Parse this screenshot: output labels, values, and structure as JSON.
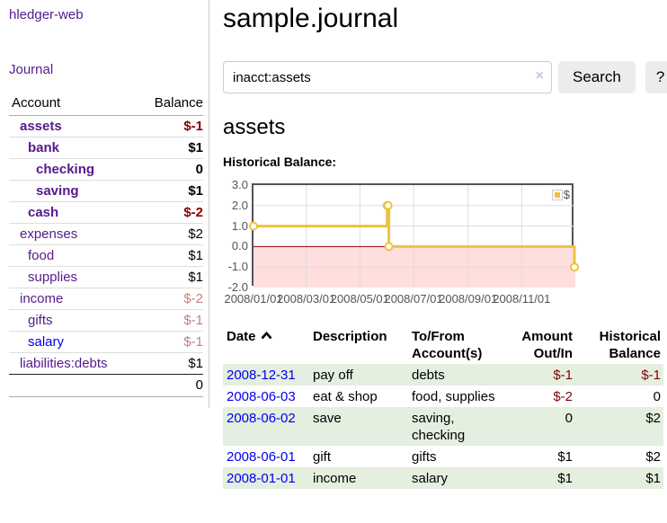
{
  "sidebar": {
    "brand": "hledger-web",
    "nav": {
      "journal_label": "Journal"
    },
    "accounts_table": {
      "headers": {
        "account": "Account",
        "balance": "Balance"
      },
      "rows": [
        {
          "name": "assets",
          "balance": "$-1",
          "depth": 1,
          "bold": true,
          "negative": true
        },
        {
          "name": "bank",
          "balance": "$1",
          "depth": 2,
          "bold": true
        },
        {
          "name": "checking",
          "balance": "0",
          "depth": 3,
          "bold": true
        },
        {
          "name": "saving",
          "balance": "$1",
          "depth": 3,
          "bold": true
        },
        {
          "name": "cash",
          "balance": "$-2",
          "depth": 2,
          "bold": true,
          "negative": true
        },
        {
          "name": "expenses",
          "balance": "$2",
          "depth": 1
        },
        {
          "name": "food",
          "balance": "$1",
          "depth": 2
        },
        {
          "name": "supplies",
          "balance": "$1",
          "depth": 2
        },
        {
          "name": "income",
          "balance": "$-2",
          "depth": 1,
          "dim": true
        },
        {
          "name": "gifts",
          "balance": "$-1",
          "depth": 2,
          "dim": true
        },
        {
          "name": "salary",
          "balance": "$-1",
          "depth": 2,
          "dim": true,
          "link": "unvisited"
        },
        {
          "name": "liabilities:debts",
          "balance": "$1",
          "depth": 1
        }
      ],
      "total": "0"
    }
  },
  "main": {
    "title": "sample.journal",
    "search": {
      "query": "inacct:assets",
      "clear_icon": "×",
      "search_button": "Search",
      "help_button": "?"
    },
    "account_heading": "assets",
    "chart_heading": "Historical Balance:",
    "register_table": {
      "headers": {
        "date": "Date",
        "description": "Description",
        "accounts": "To/From Account(s)",
        "amount": "Amount Out/In",
        "balance": "Historical Balance"
      },
      "rows": [
        {
          "date": "2008-12-31",
          "description": "pay off",
          "accounts": "debts",
          "amount": "$-1",
          "balance": "$-1",
          "amount_negative": true,
          "balance_negative": true,
          "shaded": true
        },
        {
          "date": "2008-06-03",
          "description": "eat & shop",
          "accounts": "food, supplies",
          "amount": "$-2",
          "balance": "0",
          "amount_negative": true
        },
        {
          "date": "2008-06-02",
          "description": "save",
          "accounts": "saving, checking",
          "amount": "0",
          "balance": "$2",
          "shaded": true
        },
        {
          "date": "2008-06-01",
          "description": "gift",
          "accounts": "gifts",
          "amount": "$1",
          "balance": "$2"
        },
        {
          "date": "2008-01-01",
          "description": "income",
          "accounts": "salary",
          "amount": "$1",
          "balance": "$1",
          "shaded": true
        }
      ]
    }
  },
  "chart_data": {
    "type": "line",
    "title": "Historical Balance:",
    "series": [
      {
        "name": "$",
        "color": "#EDC240",
        "step": true,
        "points": [
          [
            "2008-01-01",
            1
          ],
          [
            "2008-06-01",
            2
          ],
          [
            "2008-06-02",
            2
          ],
          [
            "2008-06-03",
            0
          ],
          [
            "2008-12-31",
            -1
          ]
        ]
      }
    ],
    "xlim": [
      "2008-01-01",
      "2009-01-01"
    ],
    "ylim": [
      -2,
      3
    ],
    "yticks": [
      3,
      2,
      1,
      0,
      -1,
      -2
    ],
    "ytick_labels": [
      "3.0",
      "2.0",
      "1.0",
      "0.0",
      "-1.0",
      "-2.0"
    ],
    "xticks": [
      "2008-01-01",
      "2008-03-01",
      "2008-05-01",
      "2008-07-01",
      "2008-09-01",
      "2008-11-01"
    ],
    "xtick_labels": [
      "2008/01/01",
      "2008/03/01",
      "2008/05/01",
      "2008/07/01",
      "2008/09/01",
      "2008/11/01"
    ],
    "legend": {
      "label": "$",
      "position": "top-right"
    },
    "grid": true,
    "colors": {
      "line": "#EDC240",
      "marker_fill": "#FFFFFF",
      "zero_line": "#8B0000",
      "negative_region": "#FFDEDE",
      "grid": "#DDDDDD",
      "border": "#545454",
      "axis_text": "#545454"
    }
  },
  "colors": {
    "visited_link": "#551A8B",
    "unvisited_link": "#0000EE",
    "negative": "#880000",
    "dim_negative": "#C48080",
    "row_stripe": "#E4EFE0",
    "button_bg": "#ECECEC"
  }
}
